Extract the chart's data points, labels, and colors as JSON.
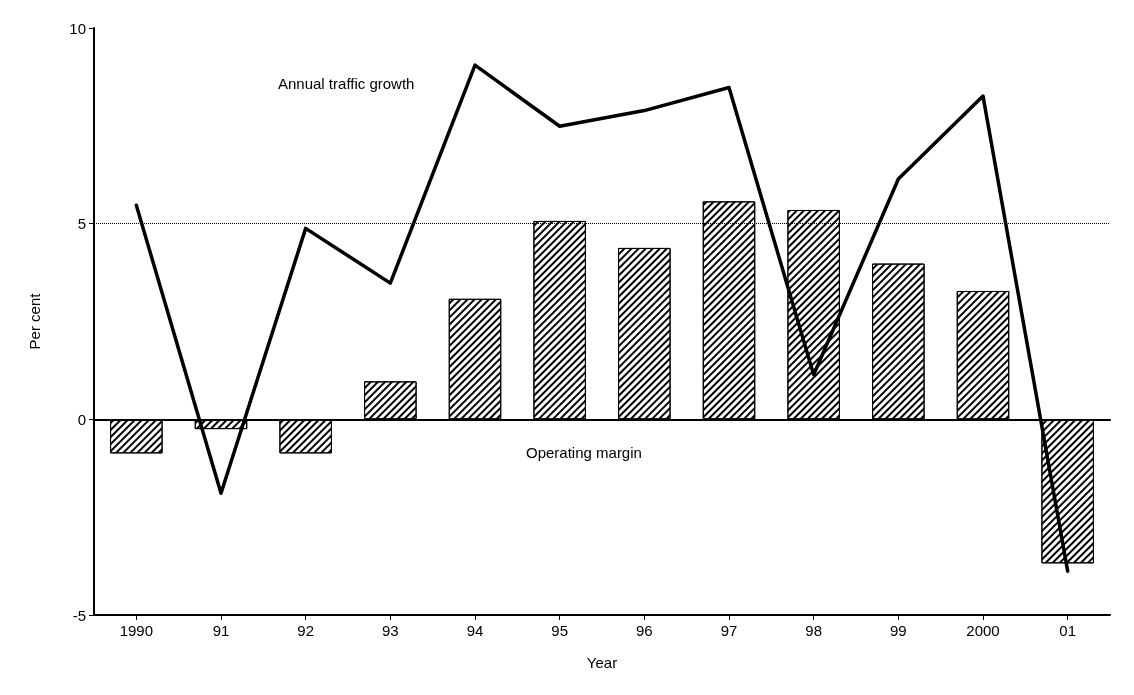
{
  "chart_data": {
    "type": "bar",
    "xlabel": "Year",
    "ylabel": "Per cent",
    "categories": [
      "1990",
      "91",
      "92",
      "93",
      "94",
      "95",
      "96",
      "97",
      "98",
      "99",
      "2000",
      "01"
    ],
    "series": [
      {
        "color": "#000000",
        "values": [
          -0.87,
          -0.25,
          -0.87,
          0.97,
          3.08,
          5.07,
          4.38,
          5.57,
          5.35,
          3.98,
          3.28,
          -3.68
        ]
      },
      {
        "type": "line",
        "color": "#000000",
        "values": [
          5.47,
          -1.89,
          4.88,
          3.48,
          9.05,
          7.49,
          7.89,
          8.48,
          1.14,
          6.14,
          8.26,
          -3.88
        ]
      }
    ],
    "annotations": [
      "Annual traffic growth",
      "Operating margin"
    ],
    "ref_lines": [
      {
        "axis": "y",
        "value": 0,
        "line_style": "solid"
      },
      {
        "axis": "y",
        "value": 5,
        "line_style": "dotted"
      }
    ],
    "ylim": [
      -5,
      10
    ],
    "yticks": [
      -5,
      0,
      5,
      10
    ],
    "grid": false,
    "marker": "none",
    "line_style": "solid"
  }
}
